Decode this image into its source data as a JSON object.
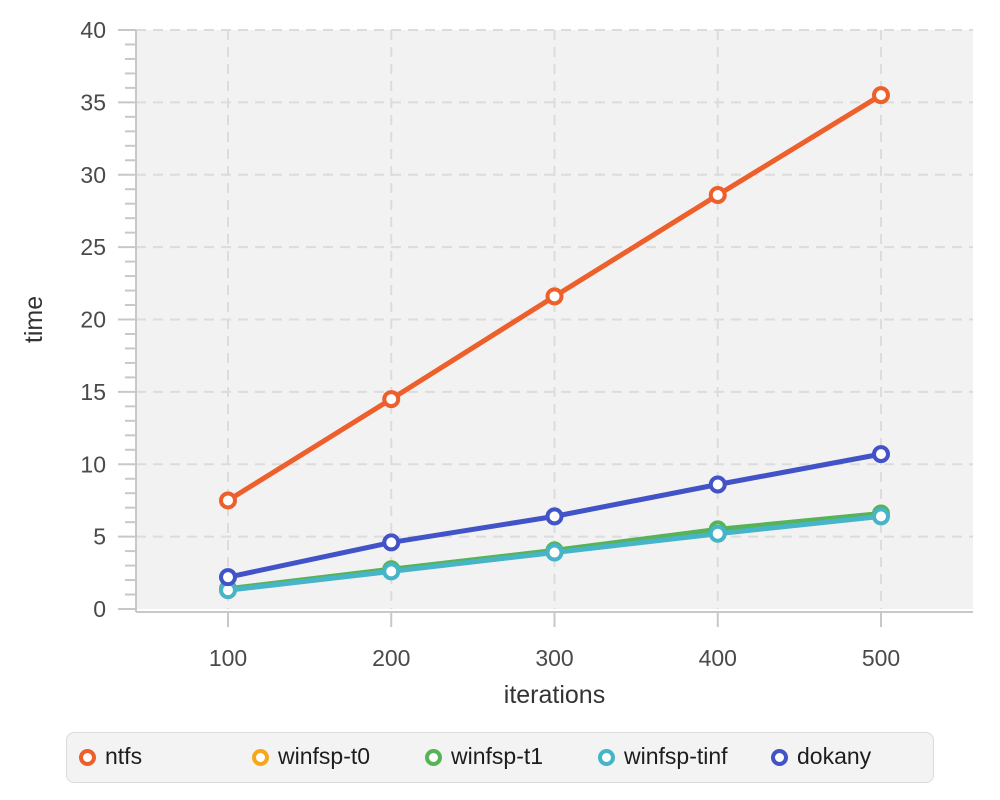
{
  "chart_data": {
    "type": "line",
    "x": [
      100,
      200,
      300,
      400,
      500
    ],
    "xlabel": "iterations",
    "ylabel": "time",
    "xticks": [
      100,
      200,
      300,
      400,
      500
    ],
    "yticks": [
      0,
      5,
      10,
      15,
      20,
      25,
      30,
      35,
      40
    ],
    "y_minor_tick_step": 1,
    "xlim": [
      100,
      500
    ],
    "ylim": [
      0,
      40
    ],
    "grid": true,
    "grid_style": "dashed",
    "legend_position": "bottom",
    "title": "",
    "series": [
      {
        "name": "ntfs",
        "color": "#ED5F2B",
        "values": [
          7.5,
          14.5,
          21.6,
          28.6,
          35.5
        ]
      },
      {
        "name": "winfsp-t0",
        "color": "#F5A81F",
        "values": [
          1.3,
          2.7,
          4.0,
          5.4,
          6.5
        ]
      },
      {
        "name": "winfsp-t1",
        "color": "#56B356",
        "values": [
          1.4,
          2.75,
          4.05,
          5.5,
          6.6
        ]
      },
      {
        "name": "winfsp-tinf",
        "color": "#47B4C8",
        "values": [
          1.3,
          2.6,
          3.9,
          5.2,
          6.4
        ]
      },
      {
        "name": "dokany",
        "color": "#4252C7",
        "values": [
          2.2,
          4.6,
          6.4,
          8.6,
          10.7
        ]
      }
    ],
    "style": {
      "plot_background": "#F2F2F2",
      "grid_color": "#DCDCDC",
      "axis_color": "#C8C8C8",
      "tick_label_color": "#4A4A4A",
      "axis_title_color": "#333333"
    }
  }
}
